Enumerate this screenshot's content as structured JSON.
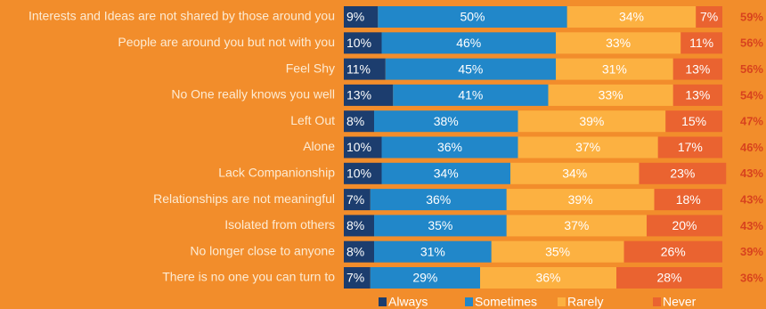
{
  "chart_data": {
    "type": "stacked-bar-horizontal",
    "categories": [
      "Interests and Ideas are not shared by those around you",
      "People are around you but not with you",
      "Feel Shy",
      "No One really knows you well",
      "Left Out",
      "Alone",
      "Lack Companionship",
      "Relationships are not meaningful",
      "Isolated from others",
      "No longer close to anyone",
      "There is no one you can turn to"
    ],
    "series": [
      {
        "name": "Always",
        "color": "#1c3d6e",
        "values": [
          9,
          10,
          11,
          13,
          8,
          10,
          10,
          7,
          8,
          8,
          7
        ],
        "value_labels": [
          "9%",
          "10%",
          "11%",
          "13%",
          "8%",
          "10%",
          "10%",
          "7%",
          "8%",
          "8%",
          "7%"
        ]
      },
      {
        "name": "Sometimes",
        "color": "#2187c9",
        "values": [
          50,
          46,
          45,
          41,
          38,
          36,
          34,
          36,
          35,
          31,
          29
        ],
        "value_labels": [
          "50%",
          "46%",
          "45%",
          "41%",
          "38%",
          "36%",
          "34%",
          "36%",
          "35%",
          "31%",
          "29%"
        ]
      },
      {
        "name": "Rarely",
        "color": "#fcb141",
        "values": [
          34,
          33,
          31,
          33,
          39,
          37,
          34,
          39,
          37,
          35,
          36
        ],
        "value_labels": [
          "34%",
          "33%",
          "31%",
          "33%",
          "39%",
          "37%",
          "34%",
          "39%",
          "37%",
          "35%",
          "36%"
        ]
      },
      {
        "name": "Never",
        "color": "#ea6330",
        "values": [
          7,
          11,
          13,
          13,
          15,
          17,
          23,
          18,
          20,
          26,
          28
        ],
        "value_labels": [
          "7%",
          "11%",
          "13%",
          "13%",
          "15%",
          "17%",
          "23%",
          "18%",
          "20%",
          "26%",
          "28%"
        ]
      }
    ],
    "totals": [
      {
        "value": 59,
        "label": "59%"
      },
      {
        "value": 56,
        "label": "56%"
      },
      {
        "value": 56,
        "label": "56%"
      },
      {
        "value": 54,
        "label": "54%"
      },
      {
        "value": 47,
        "label": "47%"
      },
      {
        "value": 46,
        "label": "46%"
      },
      {
        "value": 43,
        "label": "43%"
      },
      {
        "value": 43,
        "label": "43%"
      },
      {
        "value": 43,
        "label": "43%"
      },
      {
        "value": 39,
        "label": "39%"
      },
      {
        "value": 36,
        "label": "36%"
      }
    ],
    "xlim": [
      0,
      100
    ]
  }
}
